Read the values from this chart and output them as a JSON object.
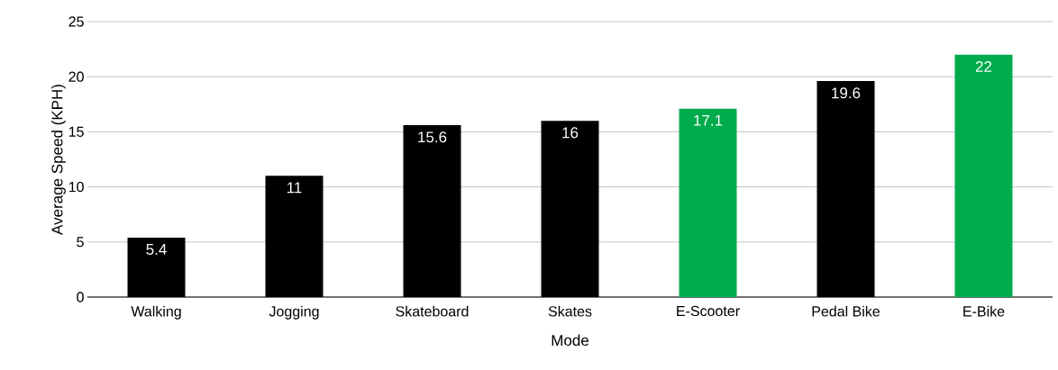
{
  "chart_data": {
    "type": "bar",
    "xlabel": "Mode",
    "ylabel": "Average Speed (KPH)",
    "categories": [
      "Walking",
      "Jogging",
      "Skateboard",
      "Skates",
      "E-Scooter",
      "Pedal Bike",
      "E-Bike"
    ],
    "values": [
      5.4,
      11,
      15.6,
      16,
      17.1,
      19.6,
      22
    ],
    "colors": [
      "#000000",
      "#000000",
      "#000000",
      "#000000",
      "#00ab4e",
      "#000000",
      "#00ab4e"
    ],
    "ylim": [
      0,
      25
    ],
    "yticks": [
      0,
      5,
      10,
      15,
      20,
      25
    ],
    "grid": "y",
    "data_labels": true
  }
}
